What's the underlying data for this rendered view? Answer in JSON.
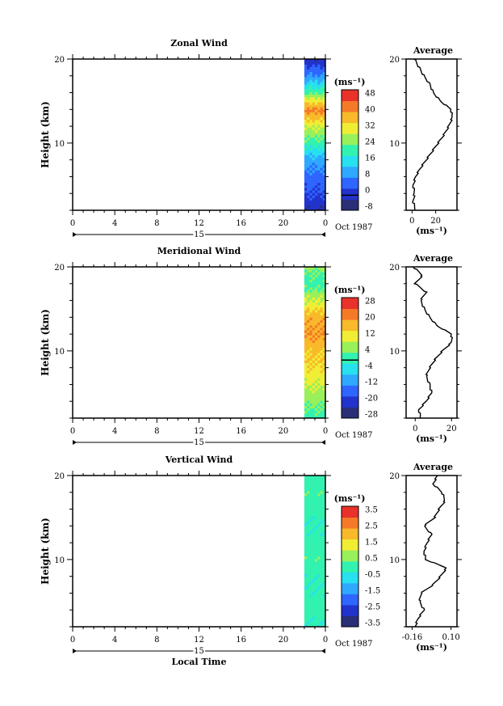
{
  "chart_data": [
    {
      "type": "heatmap",
      "title": "Zonal Wind",
      "ylabel": "Height (km)",
      "ylim": [
        2,
        20
      ],
      "yticks": [
        "10",
        "20"
      ],
      "xlim": [
        0,
        24
      ],
      "xticks": [
        "0",
        "4",
        "8",
        "12",
        "16",
        "20",
        "0"
      ],
      "date_label": "15",
      "month_label": "Oct 1987",
      "data_range_hours": [
        22,
        24
      ],
      "colorbar": {
        "unit": "(ms⁻¹)",
        "min": -8,
        "max": 48,
        "ticks": [
          "48",
          "40",
          "32",
          "24",
          "16",
          "8",
          "0",
          "-8"
        ],
        "line_value": 0
      },
      "profile": {
        "title": "Average",
        "xlabel": "(ms⁻¹)",
        "xticks": [
          "0",
          "20"
        ],
        "xlim": [
          -5,
          38
        ],
        "yticks": [
          "10",
          "20"
        ],
        "z": [
          2,
          3,
          4,
          5,
          6,
          7,
          8,
          9,
          10,
          11,
          12,
          13,
          14,
          15,
          16,
          17,
          18,
          19,
          20
        ],
        "values": [
          3,
          1,
          2,
          1,
          3,
          7,
          12,
          17,
          22,
          27,
          31,
          34,
          33,
          24,
          18,
          15,
          10,
          6,
          2
        ]
      },
      "profile_data_range": [
        2,
        20
      ],
      "field": {
        "z": [
          2,
          4,
          6,
          8,
          10,
          12,
          14,
          16,
          18,
          20
        ],
        "values": [
          -2,
          2,
          5,
          10,
          20,
          28,
          40,
          22,
          8,
          -2
        ]
      }
    },
    {
      "type": "heatmap",
      "title": "Meridional Wind",
      "ylabel": "Height (km)",
      "ylim": [
        2,
        20
      ],
      "yticks": [
        "10",
        "20"
      ],
      "xlim": [
        0,
        24
      ],
      "xticks": [
        "0",
        "4",
        "8",
        "12",
        "16",
        "20",
        "0"
      ],
      "date_label": "15",
      "month_label": "Oct 1987",
      "data_range_hours": [
        22,
        24
      ],
      "colorbar": {
        "unit": "(ms⁻¹)",
        "min": -28,
        "max": 28,
        "ticks": [
          "28",
          "20",
          "12",
          "4",
          "-4",
          "-12",
          "-20",
          "-28"
        ],
        "line_value": 0
      },
      "profile": {
        "title": "Average",
        "xlabel": "(ms⁻¹)",
        "xticks": [
          "0",
          "20"
        ],
        "xlim": [
          -5,
          23
        ],
        "yticks": [
          "10",
          "20"
        ],
        "z": [
          2,
          3,
          4,
          5,
          6,
          7,
          8,
          9,
          10,
          11,
          12,
          13,
          14,
          15,
          16,
          17,
          18,
          19,
          20
        ],
        "values": [
          3,
          2,
          6,
          9,
          8,
          6,
          8,
          11,
          15,
          20,
          20,
          12,
          8,
          5,
          3,
          6,
          0,
          4,
          -1
        ]
      },
      "profile_data_range": [
        2,
        20
      ],
      "field": {
        "z": [
          2,
          4,
          6,
          8,
          10,
          12,
          14,
          16,
          18,
          20
        ],
        "values": [
          0,
          4,
          8,
          12,
          14,
          18,
          16,
          8,
          0,
          4
        ]
      }
    },
    {
      "type": "heatmap",
      "title": "Vertical Wind",
      "ylabel": "Height (km)",
      "ylim": [
        2,
        20
      ],
      "yticks": [
        "10",
        "20"
      ],
      "xlim": [
        0,
        24
      ],
      "xticks": [
        "0",
        "4",
        "8",
        "12",
        "16",
        "20",
        "0"
      ],
      "date_label": "15",
      "month_label": "Oct 1987",
      "xlabel": "Local Time",
      "data_range_hours": [
        22,
        24
      ],
      "colorbar": {
        "unit": "(ms⁻¹)",
        "min": -3.5,
        "max": 3.5,
        "ticks": [
          "3.5",
          "2.5",
          "1.5",
          "0.5",
          "-0.5",
          "-1.5",
          "-2.5",
          "-3.5"
        ],
        "line_value": null
      },
      "profile": {
        "title": "Average",
        "xlabel": "(ms⁻¹)",
        "xticks": [
          "-0.16",
          "0.10"
        ],
        "xlim": [
          -0.2,
          0.14
        ],
        "yticks": [
          "10",
          "20"
        ],
        "z": [
          2,
          3,
          4,
          5,
          6,
          7,
          8,
          9,
          10,
          11,
          12,
          13,
          14,
          15,
          16,
          17,
          18,
          19,
          20
        ],
        "values": [
          -0.14,
          -0.12,
          -0.08,
          -0.11,
          -0.1,
          -0.02,
          0.03,
          0.07,
          -0.07,
          -0.08,
          -0.06,
          -0.03,
          -0.08,
          -0.01,
          0.02,
          0.06,
          0.04,
          -0.02,
          0.01
        ]
      },
      "profile_data_range": [
        2,
        20
      ],
      "field": {
        "z": [
          2,
          4,
          6,
          8,
          10,
          12,
          14,
          16,
          18,
          20
        ],
        "values": [
          -0.2,
          0,
          -0.1,
          -0.1,
          0.1,
          0,
          -0.2,
          0,
          0.1,
          0
        ]
      }
    }
  ]
}
